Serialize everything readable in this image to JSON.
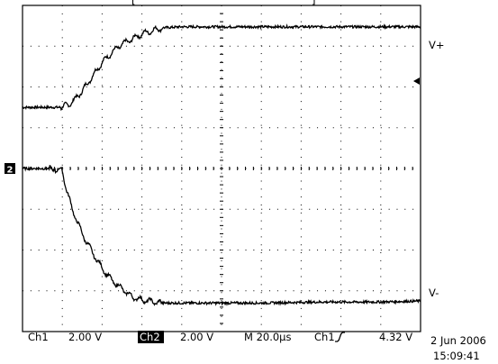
{
  "top_markers": {
    "left": "[",
    "right": "]"
  },
  "trace_labels": {
    "upper": "V+",
    "lower": "V-"
  },
  "channel_marker": "2",
  "footer": {
    "ch1_label": "Ch1",
    "ch1_scale": "2.00 V",
    "ch2_label": "Ch2",
    "ch2_scale": "2.00 V",
    "timebase": "M 20.0µs",
    "trigger_source": "Ch1",
    "trigger_level": "4.32 V",
    "date": "2 Jun 2006",
    "time": "15:09:41"
  },
  "colors": {
    "background": "#ffffff",
    "trace": "#000000",
    "grid": "#000000"
  },
  "chart_data": {
    "type": "line",
    "title": "",
    "xlabel": "",
    "ylabel": "",
    "x_unit": "µs",
    "y_unit": "V",
    "xlim": [
      0,
      200
    ],
    "ylim": [
      -8,
      8
    ],
    "grid": true,
    "grid_divisions": {
      "x": 10,
      "y": 8
    },
    "series": [
      {
        "name": "V+",
        "x": [
          0,
          20,
          25,
          30,
          35,
          40,
          45,
          50,
          60,
          70,
          80,
          100,
          120,
          150,
          180,
          200
        ],
        "y": [
          3.0,
          3.0,
          3.25,
          3.8,
          4.5,
          5.2,
          5.7,
          6.1,
          6.6,
          6.9,
          6.95,
          6.95,
          6.95,
          6.95,
          6.95,
          6.95
        ]
      },
      {
        "name": "V-",
        "x": [
          0,
          10,
          20,
          22,
          25,
          30,
          35,
          40,
          45,
          50,
          55,
          60,
          70,
          80,
          100,
          120,
          150,
          180,
          200
        ],
        "y": [
          0.0,
          0.0,
          -0.1,
          -1.0,
          -2.0,
          -3.2,
          -4.1,
          -4.9,
          -5.5,
          -5.9,
          -6.3,
          -6.45,
          -6.6,
          -6.6,
          -6.6,
          -6.6,
          -6.55,
          -6.55,
          -6.5
        ]
      }
    ]
  }
}
